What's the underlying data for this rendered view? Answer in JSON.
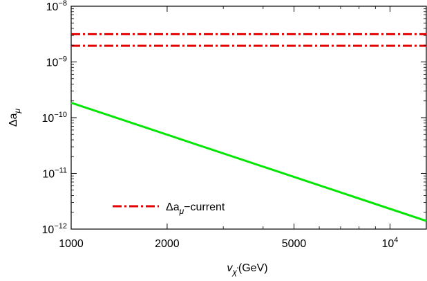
{
  "chart_data": {
    "type": "line",
    "x_scale": "log",
    "y_scale": "log",
    "xlim": [
      1000,
      13000
    ],
    "ylim": [
      1e-12,
      1e-08
    ],
    "xlabel": {
      "main": "v",
      "sub1": "χ",
      "sub2": "'",
      "unit": "(GeV)"
    },
    "ylabel": {
      "main": "Δa",
      "sub": "μ"
    },
    "x_ticks": [
      {
        "value": 1000,
        "label": "1000"
      },
      {
        "value": 2000,
        "label": "2000"
      },
      {
        "value": 5000,
        "label": "5000"
      },
      {
        "value": 10000,
        "base": "10",
        "exp": "4"
      }
    ],
    "x_minor_ticks": [
      3000,
      4000,
      6000,
      7000,
      8000,
      9000
    ],
    "y_ticks": [
      {
        "value": 1e-12,
        "base": "10",
        "exp": "−12"
      },
      {
        "value": 1e-11,
        "base": "10",
        "exp": "−11"
      },
      {
        "value": 1e-10,
        "base": "10",
        "exp": "−10"
      },
      {
        "value": 1e-09,
        "base": "10",
        "exp": "−9"
      },
      {
        "value": 1e-08,
        "base": "10",
        "exp": "−8"
      }
    ],
    "series": [
      {
        "color": "#00e600",
        "style": "solid",
        "x": [
          1000,
          13000
        ],
        "y": [
          1.85e-10,
          1.4e-12
        ]
      },
      {
        "legend": {
          "main": "Δa",
          "sub": "μ",
          "suffix": "−current"
        },
        "color": "#e60000",
        "style": "dash-dot",
        "band": [
          1.95e-09,
          3.15e-09
        ],
        "x": [
          1000,
          13000
        ]
      }
    ],
    "legend_position": "bottom-left",
    "grid": false
  }
}
